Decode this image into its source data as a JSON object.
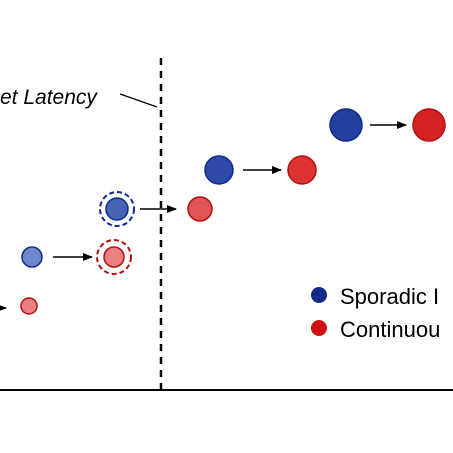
{
  "annotation": {
    "text": "et Latency"
  },
  "legend": {
    "items": [
      {
        "label": "Sporadic I",
        "color": "#0f2a8a"
      },
      {
        "label": "Continuou",
        "color": "#cc1111"
      }
    ]
  },
  "colors": {
    "sporadic_fill": "#2e4aa6",
    "sporadic_light": "#6f86c8",
    "continuous_fill": "#dd3333",
    "continuous_light": "#eb8080",
    "sporadic_dash": "#0f2a8a",
    "continuous_dash": "#b01010"
  }
}
